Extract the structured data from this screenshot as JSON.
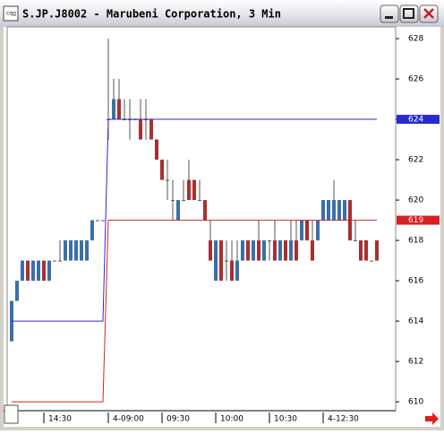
{
  "window": {
    "title": "S.JP.J8002 - Marubeni Corporation, 3 Min"
  },
  "chart_data": {
    "type": "candlestick",
    "categories": [
      null,
      null,
      null,
      null,
      null,
      null,
      "14:30",
      null,
      null,
      null,
      null,
      null,
      null,
      null,
      null,
      null,
      null,
      null,
      "4-09:00",
      null,
      null,
      null,
      null,
      null,
      null,
      null,
      null,
      null,
      "09:30",
      null,
      null,
      null,
      null,
      null,
      null,
      null,
      null,
      null,
      "10:00",
      null,
      null,
      null,
      null,
      null,
      null,
      null,
      null,
      null,
      "10:30",
      null,
      null,
      null,
      null,
      null,
      null,
      null,
      null,
      null,
      "4-12:30",
      null,
      null,
      null,
      null,
      null,
      null,
      null,
      null,
      null,
      null
    ],
    "open": [
      613,
      615,
      616,
      617,
      616,
      616,
      617,
      616,
      617,
      617,
      617,
      617,
      617,
      617,
      617,
      618,
      619,
      619,
      624,
      624,
      625,
      624,
      624,
      624,
      624,
      624,
      624,
      623,
      622,
      621,
      620,
      619,
      620,
      621,
      621,
      620,
      620,
      618,
      616,
      618,
      617,
      617,
      616,
      617,
      618,
      617,
      618,
      617,
      618,
      618,
      617,
      618,
      617,
      618,
      618,
      619,
      618,
      618,
      619,
      619,
      619,
      619,
      619,
      620,
      618,
      618,
      618,
      617,
      618
    ],
    "high": [
      615,
      616,
      617,
      617,
      617,
      617,
      617,
      617,
      617,
      618,
      618,
      618,
      618,
      618,
      618,
      619,
      619,
      619,
      628,
      626,
      626,
      625,
      625,
      624,
      625,
      625,
      624,
      623,
      622,
      622,
      621,
      620,
      621,
      622,
      621,
      621,
      620,
      619,
      618,
      618,
      618,
      618,
      618,
      618,
      618,
      618,
      619,
      618,
      618,
      619,
      618,
      618,
      619,
      619,
      619,
      619,
      619,
      619,
      620,
      620,
      621,
      620,
      620,
      620,
      619,
      618,
      618,
      617,
      618
    ],
    "low": [
      613,
      615,
      616,
      616,
      616,
      616,
      616,
      616,
      617,
      617,
      617,
      617,
      617,
      617,
      617,
      618,
      619,
      619,
      623,
      624,
      624,
      624,
      623,
      624,
      623,
      623,
      623,
      622,
      621,
      620,
      619,
      619,
      620,
      620,
      620,
      620,
      619,
      617,
      616,
      616,
      616,
      616,
      616,
      617,
      617,
      617,
      617,
      617,
      617,
      617,
      617,
      617,
      617,
      617,
      618,
      618,
      617,
      618,
      619,
      619,
      619,
      619,
      619,
      618,
      618,
      617,
      617,
      617,
      617
    ],
    "close": [
      615,
      616,
      617,
      616,
      617,
      617,
      616,
      617,
      617,
      617,
      618,
      618,
      618,
      618,
      618,
      619,
      619,
      619,
      624,
      625,
      624,
      624,
      624,
      624,
      623,
      624,
      623,
      622,
      621,
      621,
      620,
      620,
      620,
      620,
      620,
      620,
      619,
      617,
      618,
      616,
      617,
      616,
      617,
      618,
      617,
      618,
      617,
      618,
      618,
      617,
      618,
      617,
      618,
      617,
      619,
      618,
      617,
      619,
      620,
      620,
      620,
      620,
      620,
      618,
      618,
      617,
      617,
      617,
      617
    ],
    "up_color": "#3b6fa8",
    "down_color": "#a83030",
    "flat_color": "#555555",
    "series": [
      {
        "color": "#2a2ad0",
        "values": [
          614,
          614,
          614,
          614,
          614,
          614,
          614,
          614,
          614,
          614,
          614,
          614,
          614,
          614,
          614,
          614,
          614,
          614,
          624,
          624,
          624,
          624,
          624,
          624,
          624,
          624,
          624,
          624,
          624,
          624,
          624,
          624,
          624,
          624,
          624,
          624,
          624,
          624,
          624,
          624,
          624,
          624,
          624,
          624,
          624,
          624,
          624,
          624,
          624,
          624,
          624,
          624,
          624,
          624,
          624,
          624,
          624,
          624,
          624,
          624,
          624,
          624,
          624,
          624,
          624,
          624,
          624,
          624,
          624
        ]
      },
      {
        "color": "#d82020",
        "values": [
          610,
          610,
          610,
          610,
          610,
          610,
          610,
          610,
          610,
          610,
          610,
          610,
          610,
          610,
          610,
          610,
          610,
          610,
          619,
          619,
          619,
          619,
          619,
          619,
          619,
          619,
          619,
          619,
          619,
          619,
          619,
          619,
          619,
          619,
          619,
          619,
          619,
          619,
          619,
          619,
          619,
          619,
          619,
          619,
          619,
          619,
          619,
          619,
          619,
          619,
          619,
          619,
          619,
          619,
          619,
          619,
          619,
          619,
          619,
          619,
          619,
          619,
          619,
          619,
          619,
          619,
          619,
          619,
          619
        ]
      }
    ],
    "ylim": [
      609.56,
      628.58
    ],
    "yticks": [
      610,
      612,
      614,
      616,
      618,
      620,
      622,
      624,
      626,
      628
    ]
  }
}
